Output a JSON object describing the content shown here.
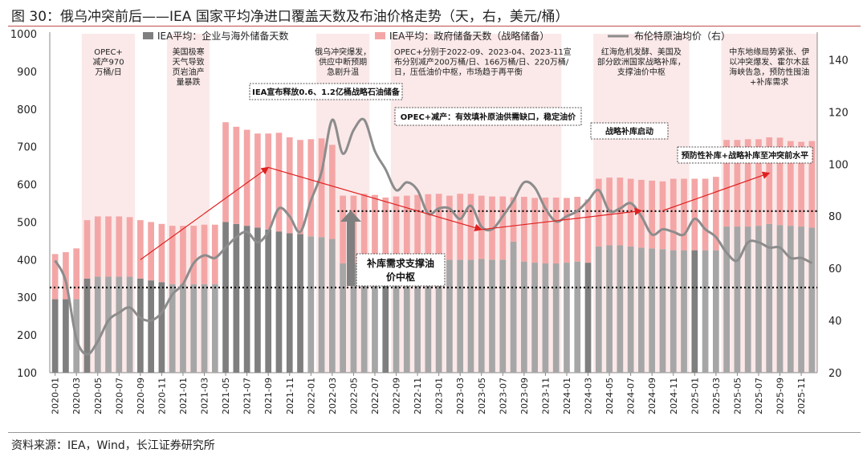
{
  "figure_title": "图 30：俄乌冲突前后——IEA 国家平均净进口覆盖天数及布油价格走势（天，右，美元/桶）",
  "source_note": "资料来源：IEA，Wind，长江证券研究所",
  "colors": {
    "commercial_bar": "#a6a6a6",
    "commercial_bar_dark": "#7f7f7f",
    "government_bar": "#f4a6a6",
    "brent_line": "#8c8c8c",
    "shade": "#fbe9e9",
    "arrow": "#e02020",
    "dotted": "#111111"
  },
  "chart_data": {
    "type": "bar",
    "categories": [
      "2020-01",
      "2020-02",
      "2020-03",
      "2020-04",
      "2020-05",
      "2020-06",
      "2020-07",
      "2020-08",
      "2020-09",
      "2020-10",
      "2020-11",
      "2020-12",
      "2021-01",
      "2021-02",
      "2021-03",
      "2021-04",
      "2021-05",
      "2021-06",
      "2021-07",
      "2021-08",
      "2021-09",
      "2021-10",
      "2021-11",
      "2021-12",
      "2022-01",
      "2022-02",
      "2022-03",
      "2022-04",
      "2022-05",
      "2022-06",
      "2022-07",
      "2022-08",
      "2022-09",
      "2022-10",
      "2022-11",
      "2022-12",
      "2023-01",
      "2023-02",
      "2023-03",
      "2023-04",
      "2023-05",
      "2023-06",
      "2023-07",
      "2023-08",
      "2023-09",
      "2023-10",
      "2023-11",
      "2023-12",
      "2024-01",
      "2024-02",
      "2024-03",
      "2024-04",
      "2024-05",
      "2024-06",
      "2024-07",
      "2024-08",
      "2024-09",
      "2024-10",
      "2024-11",
      "2024-12",
      "2025-01",
      "2025-02",
      "2025-03",
      "2025-04",
      "2025-05",
      "2025-06",
      "2025-07",
      "2025-08",
      "2025-09",
      "2025-10",
      "2025-11",
      "2025-12"
    ],
    "x_tick_labels": [
      "2020-01",
      "2020-03",
      "2020-05",
      "2020-07",
      "2020-09",
      "2020-11",
      "2021-01",
      "2021-03",
      "2021-05",
      "2021-07",
      "2021-09",
      "2021-11",
      "2022-01",
      "2022-03",
      "2022-05",
      "2022-07",
      "2022-09",
      "2022-11",
      "2023-01",
      "2023-03",
      "2023-05",
      "2023-07",
      "2023-09",
      "2023-11",
      "2024-01",
      "2024-03",
      "2024-05",
      "2024-07",
      "2024-09",
      "2024-11",
      "2025-01",
      "2025-03",
      "2025-05",
      "2025-07",
      "2025-09",
      "2025-11"
    ],
    "y_left": {
      "min": 100,
      "max": 1000,
      "ticks": [
        100,
        200,
        300,
        400,
        500,
        600,
        700,
        800,
        900,
        1000
      ]
    },
    "y_right": {
      "min": 20,
      "max": 150,
      "ticks": [
        20,
        40,
        60,
        80,
        100,
        120,
        140
      ],
      "label": "右"
    },
    "series": [
      {
        "name": "IEA平均：企业与海外储备天数",
        "kind": "bar",
        "highlight_months": [
          "2020-01",
          "2020-02",
          "2020-04",
          "2020-09",
          "2020-10",
          "2020-11",
          "2021-05",
          "2021-06",
          "2021-07",
          "2021-08",
          "2021-09",
          "2021-10",
          "2021-11",
          "2021-12",
          "2022-08",
          "2024-03",
          "2025-01"
        ],
        "values": [
          195,
          195,
          195,
          250,
          255,
          255,
          255,
          255,
          250,
          245,
          240,
          235,
          235,
          235,
          235,
          235,
          400,
          395,
          390,
          385,
          380,
          375,
          370,
          368,
          362,
          360,
          355,
          290,
          290,
          290,
          292,
          295,
          298,
          300,
          302,
          302,
          305,
          300,
          300,
          300,
          302,
          300,
          300,
          348,
          295,
          292,
          290,
          290,
          292,
          295,
          292,
          335,
          338,
          338,
          335,
          332,
          330,
          328,
          325,
          325,
          325,
          325,
          325,
          388,
          388,
          388,
          390,
          395,
          392,
          390,
          388,
          385
        ]
      },
      {
        "name": "IEA平均：政府储备天数（战略储备）",
        "kind": "bar",
        "values": [
          120,
          125,
          135,
          155,
          160,
          160,
          160,
          158,
          155,
          155,
          155,
          155,
          155,
          155,
          158,
          158,
          265,
          258,
          255,
          250,
          255,
          262,
          255,
          250,
          258,
          262,
          250,
          180,
          180,
          185,
          180,
          170,
          170,
          170,
          170,
          172,
          170,
          170,
          175,
          175,
          168,
          168,
          168,
          118,
          172,
          172,
          175,
          175,
          172,
          172,
          168,
          180,
          180,
          180,
          180,
          180,
          180,
          180,
          190,
          190,
          190,
          190,
          195,
          230,
          230,
          232,
          230,
          230,
          232,
          225,
          225,
          230
        ]
      },
      {
        "name": "布伦特原油均价（右）",
        "kind": "line",
        "axis": "right",
        "values": [
          63,
          55,
          33,
          27,
          32,
          40,
          43,
          45,
          41,
          40,
          43,
          50,
          54,
          62,
          65,
          64,
          68,
          72,
          74,
          70,
          74,
          83,
          80,
          74,
          86,
          97,
          117,
          104,
          113,
          117,
          105,
          98,
          90,
          93,
          90,
          81,
          83,
          83,
          79,
          84,
          76,
          75,
          80,
          86,
          93,
          91,
          83,
          78,
          80,
          82,
          86,
          90,
          82,
          83,
          85,
          80,
          73,
          75,
          74,
          73,
          79,
          75,
          72,
          66,
          63,
          70,
          70,
          68,
          68,
          64,
          64,
          62
        ]
      }
    ],
    "reference_lines": [
      {
        "label": "",
        "value": 326,
        "from": "2020-01",
        "to": "2025-12"
      },
      {
        "label": "",
        "value": 529,
        "from": "2022-04",
        "to": "2025-12"
      }
    ],
    "shaded_periods": [
      {
        "from": "2020-04",
        "to": "2020-08",
        "text": "OPEC+\n减产970\n万桶/日"
      },
      {
        "from": "2020-12",
        "to": "2021-03",
        "text": "美国极寒\n天气导致\n页岩油产\n量暴跌"
      },
      {
        "from": "2022-02",
        "to": "2022-06",
        "text": "俄乌冲突爆发，\n供应中断预期\n急剧升温"
      },
      {
        "from": "2022-09",
        "to": "2023-12",
        "text": "OPEC+分别于2022-09、2023-04、2023-11宣\n布分别减产200万桶/日、166万桶/日、220万桶/\n日，压低油价中枢，市场趋于再平衡"
      },
      {
        "from": "2024-04",
        "to": "2024-12",
        "text": "红海危机发酵、美国及\n部分欧洲国家战略补库，\n支撑油价中枢"
      },
      {
        "from": "2025-04",
        "to": "2025-12",
        "text": "中东地缘局势紧张、伊\n以冲突爆发、霍尔木兹\n海峡告急，预防性囤油\n+补库需求"
      }
    ],
    "boxed_annotations": [
      {
        "text": "IEA宣布释放0.6、1.2亿桶战略石油储备"
      },
      {
        "text": "OPEC+减产：有效填补原油供需缺口，稳定油价"
      },
      {
        "text": "战略补库启动"
      },
      {
        "text": "预防性补库+战略补库至冲突前水平"
      },
      {
        "text": "补库需求支撑油\n价中枢"
      }
    ],
    "legend_position": "top"
  }
}
